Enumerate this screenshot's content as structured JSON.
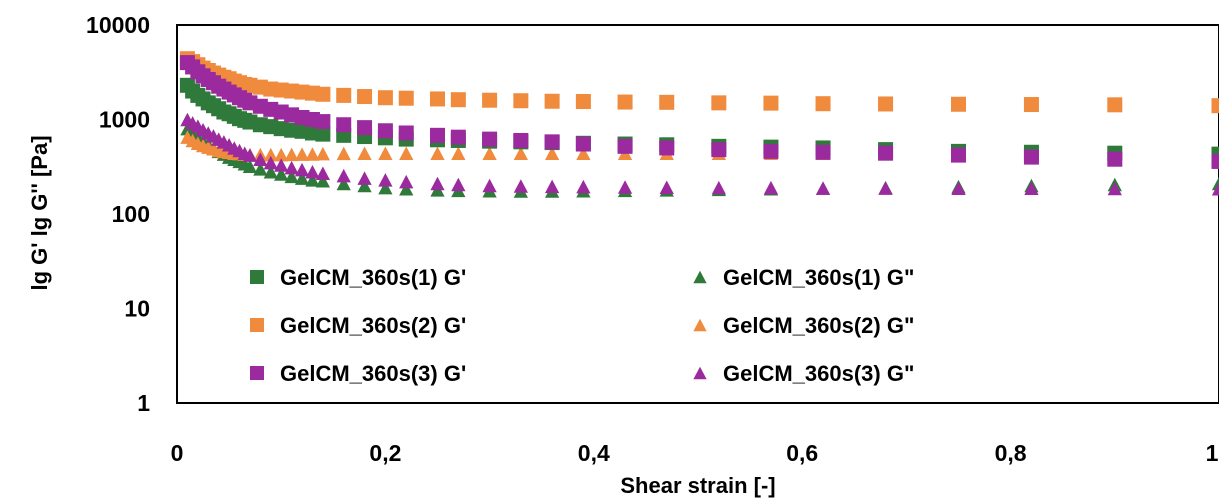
{
  "chart_data": {
    "type": "scatter",
    "title": "",
    "xlabel": "Shear strain [-]",
    "ylabel": "lg G' lg G'' [Pa]",
    "x_scale": "linear",
    "y_scale": "log",
    "xlim": [
      0,
      1
    ],
    "ylim": [
      1,
      10000
    ],
    "x_ticks": [
      0,
      0.2,
      0.4,
      0.6,
      0.8,
      1
    ],
    "x_tick_labels": [
      "0",
      "0,2",
      "0,4",
      "0,6",
      "0,8",
      "1"
    ],
    "y_ticks": [
      1,
      10,
      100,
      1000,
      10000
    ],
    "y_tick_labels": [
      "1",
      "10",
      "100",
      "1000",
      "10000"
    ],
    "grid": false,
    "legend_position": "inside-lower-left, two columns",
    "series": [
      {
        "name": "GelCM_360s(1) G'",
        "marker": "square",
        "color": "#2f7a3a",
        "points": [
          [
            0.01,
            2300
          ],
          [
            0.015,
            2000
          ],
          [
            0.02,
            1800
          ],
          [
            0.025,
            1650
          ],
          [
            0.03,
            1500
          ],
          [
            0.035,
            1400
          ],
          [
            0.04,
            1300
          ],
          [
            0.045,
            1200
          ],
          [
            0.05,
            1150
          ],
          [
            0.055,
            1080
          ],
          [
            0.06,
            1020
          ],
          [
            0.065,
            980
          ],
          [
            0.07,
            940
          ],
          [
            0.08,
            880
          ],
          [
            0.09,
            840
          ],
          [
            0.1,
            800
          ],
          [
            0.11,
            770
          ],
          [
            0.12,
            750
          ],
          [
            0.13,
            720
          ],
          [
            0.14,
            700
          ],
          [
            0.16,
            680
          ],
          [
            0.18,
            660
          ],
          [
            0.2,
            640
          ],
          [
            0.22,
            620
          ],
          [
            0.25,
            610
          ],
          [
            0.27,
            600
          ],
          [
            0.3,
            590
          ],
          [
            0.33,
            580
          ],
          [
            0.36,
            570
          ],
          [
            0.39,
            560
          ],
          [
            0.43,
            550
          ],
          [
            0.47,
            540
          ],
          [
            0.52,
            520
          ],
          [
            0.57,
            510
          ],
          [
            0.62,
            500
          ],
          [
            0.68,
            480
          ],
          [
            0.75,
            460
          ],
          [
            0.82,
            450
          ],
          [
            0.9,
            440
          ],
          [
            1.0,
            430
          ]
        ]
      },
      {
        "name": "GelCM_360s(2) G'",
        "marker": "square",
        "color": "#f08a3c",
        "points": [
          [
            0.01,
            4400
          ],
          [
            0.015,
            4100
          ],
          [
            0.02,
            3800
          ],
          [
            0.025,
            3500
          ],
          [
            0.03,
            3300
          ],
          [
            0.035,
            3100
          ],
          [
            0.04,
            2950
          ],
          [
            0.045,
            2800
          ],
          [
            0.05,
            2700
          ],
          [
            0.055,
            2550
          ],
          [
            0.06,
            2450
          ],
          [
            0.065,
            2350
          ],
          [
            0.07,
            2300
          ],
          [
            0.08,
            2200
          ],
          [
            0.09,
            2100
          ],
          [
            0.1,
            2050
          ],
          [
            0.11,
            2000
          ],
          [
            0.12,
            1950
          ],
          [
            0.13,
            1900
          ],
          [
            0.14,
            1850
          ],
          [
            0.16,
            1800
          ],
          [
            0.18,
            1750
          ],
          [
            0.2,
            1700
          ],
          [
            0.22,
            1680
          ],
          [
            0.25,
            1650
          ],
          [
            0.27,
            1620
          ],
          [
            0.3,
            1600
          ],
          [
            0.33,
            1580
          ],
          [
            0.36,
            1560
          ],
          [
            0.39,
            1550
          ],
          [
            0.43,
            1530
          ],
          [
            0.47,
            1520
          ],
          [
            0.52,
            1500
          ],
          [
            0.57,
            1490
          ],
          [
            0.62,
            1470
          ],
          [
            0.68,
            1460
          ],
          [
            0.75,
            1450
          ],
          [
            0.82,
            1440
          ],
          [
            0.9,
            1430
          ],
          [
            1.0,
            1400
          ]
        ]
      },
      {
        "name": "GelCM_360s(3) G'",
        "marker": "square",
        "color": "#9a2a9e",
        "points": [
          [
            0.01,
            4000
          ],
          [
            0.015,
            3600
          ],
          [
            0.02,
            3200
          ],
          [
            0.025,
            2900
          ],
          [
            0.03,
            2650
          ],
          [
            0.035,
            2450
          ],
          [
            0.04,
            2250
          ],
          [
            0.045,
            2100
          ],
          [
            0.05,
            1950
          ],
          [
            0.055,
            1820
          ],
          [
            0.06,
            1700
          ],
          [
            0.065,
            1600
          ],
          [
            0.07,
            1500
          ],
          [
            0.08,
            1380
          ],
          [
            0.09,
            1280
          ],
          [
            0.1,
            1200
          ],
          [
            0.11,
            1120
          ],
          [
            0.12,
            1050
          ],
          [
            0.13,
            1000
          ],
          [
            0.14,
            950
          ],
          [
            0.16,
            880
          ],
          [
            0.18,
            820
          ],
          [
            0.2,
            760
          ],
          [
            0.22,
            720
          ],
          [
            0.25,
            680
          ],
          [
            0.27,
            650
          ],
          [
            0.3,
            620
          ],
          [
            0.33,
            600
          ],
          [
            0.36,
            580
          ],
          [
            0.39,
            550
          ],
          [
            0.43,
            520
          ],
          [
            0.47,
            500
          ],
          [
            0.52,
            480
          ],
          [
            0.57,
            460
          ],
          [
            0.62,
            450
          ],
          [
            0.68,
            440
          ],
          [
            0.75,
            420
          ],
          [
            0.82,
            400
          ],
          [
            0.9,
            380
          ],
          [
            1.0,
            360
          ]
        ]
      },
      {
        "name": "GelCM_360s(1) G\"",
        "marker": "triangle",
        "color": "#2f7a3a",
        "points": [
          [
            0.01,
            800
          ],
          [
            0.015,
            720
          ],
          [
            0.02,
            650
          ],
          [
            0.025,
            600
          ],
          [
            0.03,
            550
          ],
          [
            0.035,
            500
          ],
          [
            0.04,
            460
          ],
          [
            0.045,
            430
          ],
          [
            0.05,
            400
          ],
          [
            0.055,
            380
          ],
          [
            0.06,
            360
          ],
          [
            0.065,
            340
          ],
          [
            0.07,
            320
          ],
          [
            0.08,
            300
          ],
          [
            0.09,
            280
          ],
          [
            0.1,
            265
          ],
          [
            0.11,
            250
          ],
          [
            0.12,
            240
          ],
          [
            0.13,
            230
          ],
          [
            0.14,
            225
          ],
          [
            0.16,
            210
          ],
          [
            0.18,
            200
          ],
          [
            0.2,
            190
          ],
          [
            0.22,
            185
          ],
          [
            0.25,
            180
          ],
          [
            0.27,
            178
          ],
          [
            0.3,
            176
          ],
          [
            0.33,
            175
          ],
          [
            0.36,
            175
          ],
          [
            0.39,
            176
          ],
          [
            0.43,
            178
          ],
          [
            0.47,
            180
          ],
          [
            0.52,
            182
          ],
          [
            0.57,
            185
          ],
          [
            0.62,
            188
          ],
          [
            0.68,
            190
          ],
          [
            0.75,
            195
          ],
          [
            0.82,
            200
          ],
          [
            0.9,
            205
          ],
          [
            1.0,
            210
          ]
        ]
      },
      {
        "name": "GelCM_360s(2) G\"",
        "marker": "triangle",
        "color": "#f08a3c",
        "points": [
          [
            0.01,
            650
          ],
          [
            0.015,
            600
          ],
          [
            0.02,
            560
          ],
          [
            0.025,
            530
          ],
          [
            0.03,
            510
          ],
          [
            0.035,
            490
          ],
          [
            0.04,
            470
          ],
          [
            0.045,
            460
          ],
          [
            0.05,
            450
          ],
          [
            0.055,
            440
          ],
          [
            0.06,
            435
          ],
          [
            0.065,
            430
          ],
          [
            0.07,
            425
          ],
          [
            0.08,
            425
          ],
          [
            0.09,
            425
          ],
          [
            0.1,
            425
          ],
          [
            0.11,
            428
          ],
          [
            0.12,
            430
          ],
          [
            0.13,
            432
          ],
          [
            0.14,
            435
          ],
          [
            0.16,
            438
          ],
          [
            0.18,
            440
          ],
          [
            0.2,
            440
          ],
          [
            0.22,
            440
          ],
          [
            0.25,
            440
          ],
          [
            0.27,
            440
          ],
          [
            0.3,
            440
          ],
          [
            0.33,
            440
          ],
          [
            0.36,
            440
          ],
          [
            0.39,
            440
          ],
          [
            0.43,
            440
          ],
          [
            0.47,
            440
          ],
          [
            0.52,
            440
          ],
          [
            0.57,
            440
          ],
          [
            0.62,
            440
          ],
          [
            0.68,
            440
          ],
          [
            0.75,
            440
          ],
          [
            0.82,
            440
          ],
          [
            0.9,
            440
          ],
          [
            1.0,
            440
          ]
        ]
      },
      {
        "name": "GelCM_360s(3) G\"",
        "marker": "triangle",
        "color": "#9a2a9e",
        "points": [
          [
            0.01,
            1000
          ],
          [
            0.015,
            920
          ],
          [
            0.02,
            850
          ],
          [
            0.025,
            780
          ],
          [
            0.03,
            720
          ],
          [
            0.035,
            670
          ],
          [
            0.04,
            620
          ],
          [
            0.045,
            580
          ],
          [
            0.05,
            540
          ],
          [
            0.055,
            500
          ],
          [
            0.06,
            470
          ],
          [
            0.065,
            440
          ],
          [
            0.07,
            420
          ],
          [
            0.08,
            380
          ],
          [
            0.09,
            350
          ],
          [
            0.1,
            330
          ],
          [
            0.11,
            310
          ],
          [
            0.12,
            295
          ],
          [
            0.13,
            280
          ],
          [
            0.14,
            270
          ],
          [
            0.16,
            255
          ],
          [
            0.18,
            240
          ],
          [
            0.2,
            230
          ],
          [
            0.22,
            220
          ],
          [
            0.25,
            210
          ],
          [
            0.27,
            205
          ],
          [
            0.3,
            200
          ],
          [
            0.33,
            198
          ],
          [
            0.36,
            196
          ],
          [
            0.39,
            195
          ],
          [
            0.43,
            193
          ],
          [
            0.47,
            192
          ],
          [
            0.52,
            190
          ],
          [
            0.57,
            190
          ],
          [
            0.62,
            188
          ],
          [
            0.68,
            188
          ],
          [
            0.75,
            187
          ],
          [
            0.82,
            187
          ],
          [
            0.9,
            186
          ],
          [
            1.0,
            185
          ]
        ]
      }
    ]
  }
}
